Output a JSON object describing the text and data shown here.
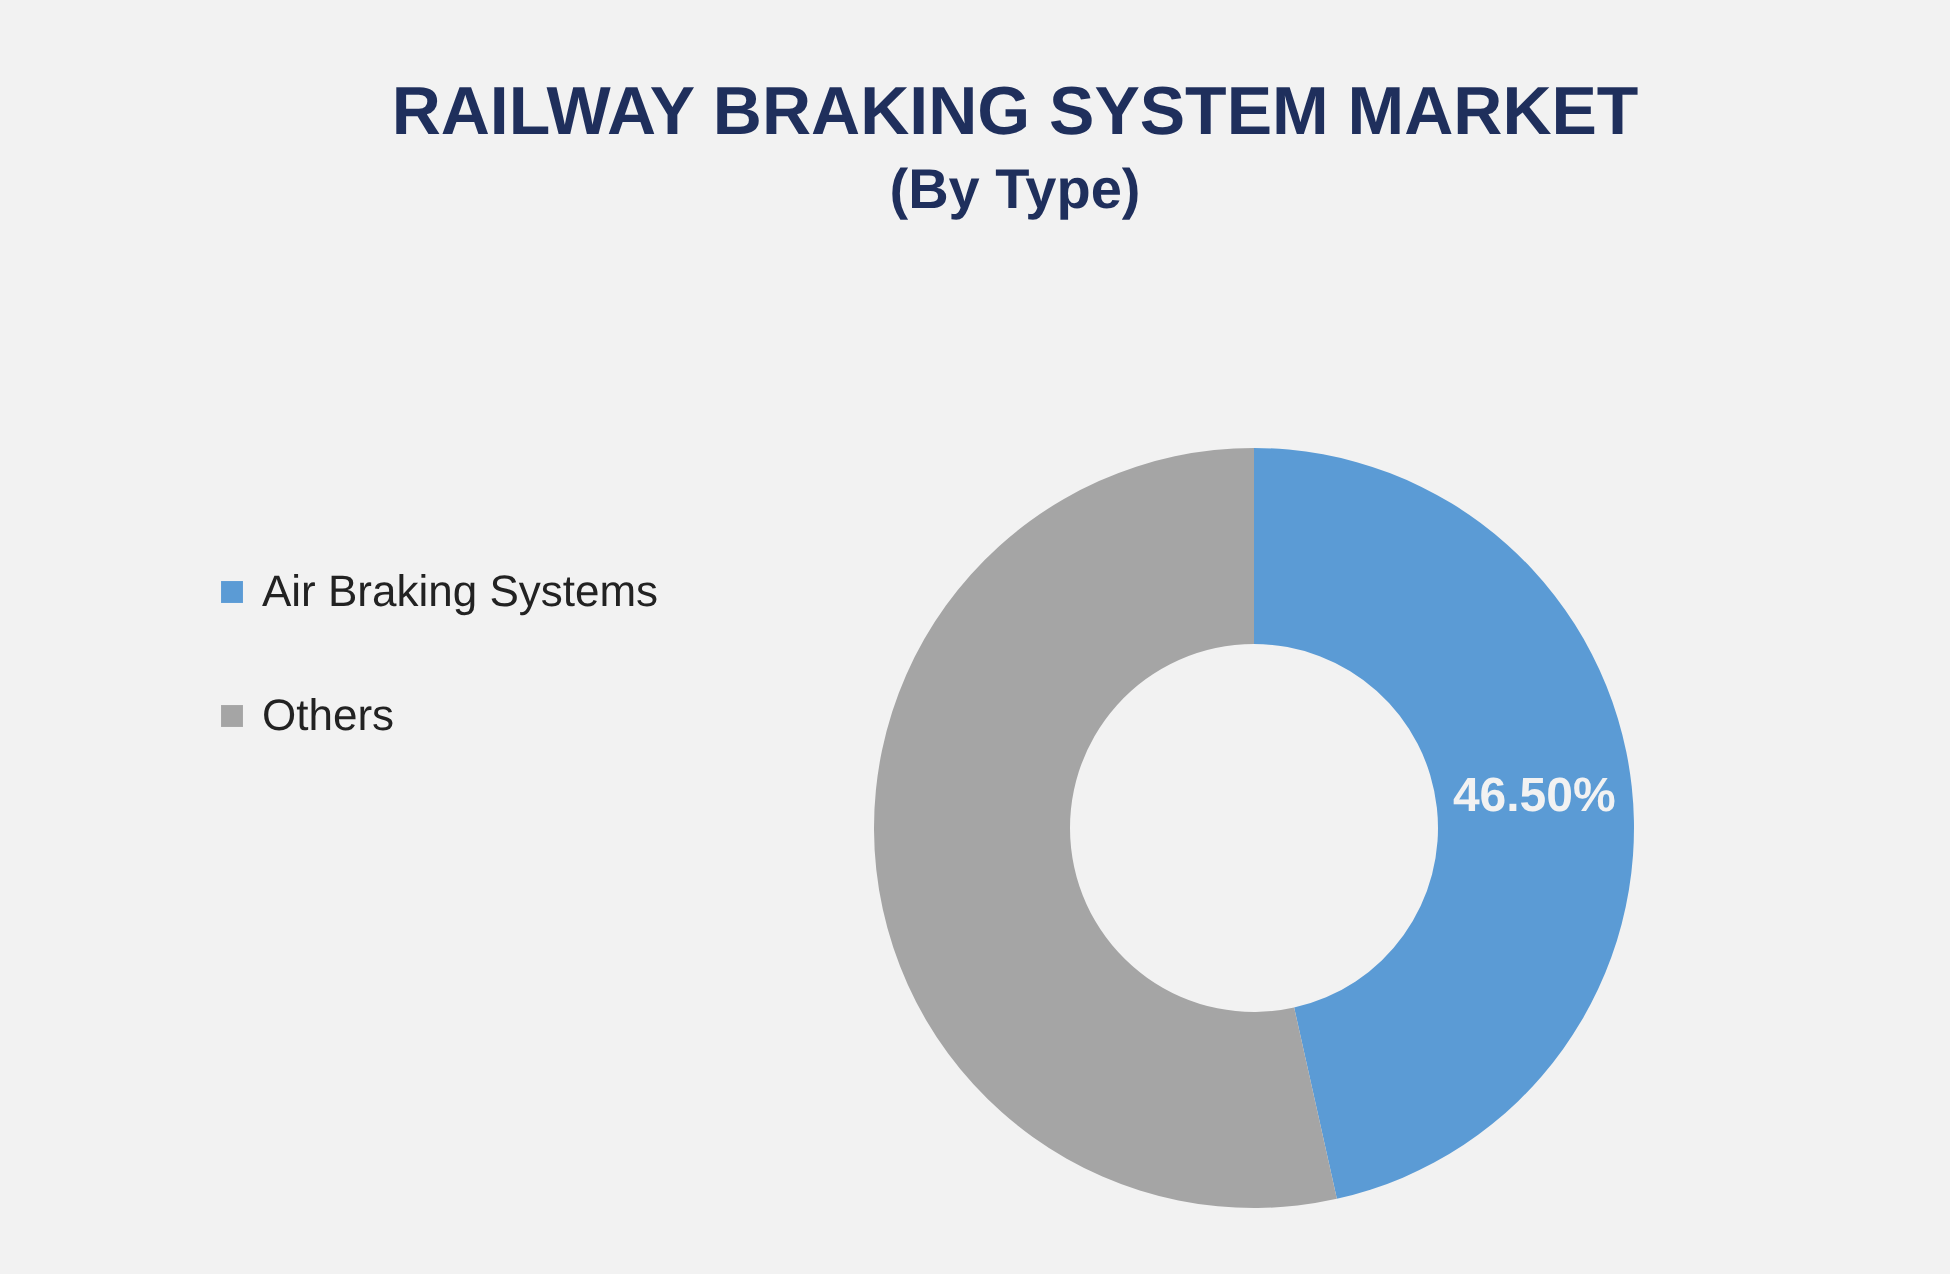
{
  "chart_data": {
    "type": "donut",
    "title": "RAILWAY BRAKING SYSTEM MARKET",
    "subtitle": "(By Type)",
    "categories": [
      "Air Braking Systems",
      "Others"
    ],
    "values": [
      46.5,
      53.5
    ],
    "colors": [
      "#5b9bd5",
      "#a5a5a5"
    ],
    "value_labels": [
      "46.50%",
      null
    ],
    "legend": "left"
  }
}
